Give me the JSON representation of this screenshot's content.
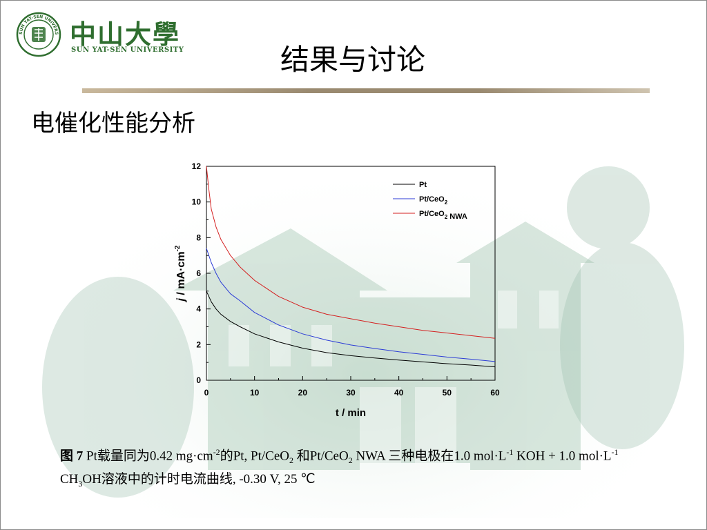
{
  "logo": {
    "name_cn": "中山大學",
    "name_en": "SUN YAT-SEN UNIVERSITY",
    "seal_text": "SUN YAT-SEN UNIVERSITY"
  },
  "slide_title": "结果与讨论",
  "section_heading": "电催化性能分析",
  "chart_data": {
    "type": "line",
    "xlabel": "t / min",
    "ylabel": "j / mA·cm-2",
    "xlim": [
      0,
      60
    ],
    "ylim": [
      0,
      12
    ],
    "xticks": [
      0,
      10,
      20,
      30,
      40,
      50,
      60
    ],
    "yticks": [
      0,
      2,
      4,
      6,
      8,
      10,
      12
    ],
    "grid": false,
    "legend_position": "top-right",
    "series": [
      {
        "name": "Pt",
        "color": "#000000",
        "x": [
          0,
          1,
          2,
          3,
          5,
          7,
          10,
          15,
          20,
          25,
          30,
          35,
          40,
          45,
          50,
          55,
          60
        ],
        "values": [
          5.0,
          4.4,
          4.0,
          3.7,
          3.3,
          3.0,
          2.6,
          2.15,
          1.8,
          1.55,
          1.38,
          1.25,
          1.13,
          1.03,
          0.93,
          0.85,
          0.75
        ]
      },
      {
        "name": "Pt/CeO2",
        "color": "#2b3bd6",
        "x": [
          0,
          1,
          2,
          3,
          5,
          7,
          10,
          15,
          20,
          25,
          30,
          35,
          40,
          45,
          50,
          55,
          60
        ],
        "values": [
          7.4,
          6.6,
          6.0,
          5.5,
          4.85,
          4.45,
          3.8,
          3.1,
          2.6,
          2.25,
          1.98,
          1.78,
          1.6,
          1.45,
          1.3,
          1.18,
          1.05
        ]
      },
      {
        "name": "Pt/CeO2 NWA",
        "color": "#d42020",
        "x": [
          0,
          0.5,
          1,
          2,
          3,
          5,
          7,
          10,
          15,
          20,
          25,
          30,
          35,
          40,
          45,
          50,
          55,
          60
        ],
        "values": [
          12.0,
          10.7,
          9.6,
          8.6,
          7.9,
          7.0,
          6.35,
          5.6,
          4.7,
          4.1,
          3.7,
          3.45,
          3.2,
          3.0,
          2.8,
          2.65,
          2.5,
          2.35
        ]
      }
    ]
  },
  "caption": {
    "fig_label": "图 7",
    "text_1": " Pt载量同为0.42 mg·cm",
    "sup_1": "-2",
    "text_2": "的Pt, Pt/CeO",
    "sub_1": "2",
    "text_3": " 和Pt/CeO",
    "sub_2": "2",
    "text_4": " NWA 三种电极在1.0 mol·L",
    "sup_2": "-1",
    "text_5": " KOH + 1.0 mol·L",
    "sup_3": "-1",
    "text_6": " CH",
    "sub_3": "3",
    "text_7": "OH溶液中的计时电流曲线, -0.30 V, 25 ℃"
  }
}
